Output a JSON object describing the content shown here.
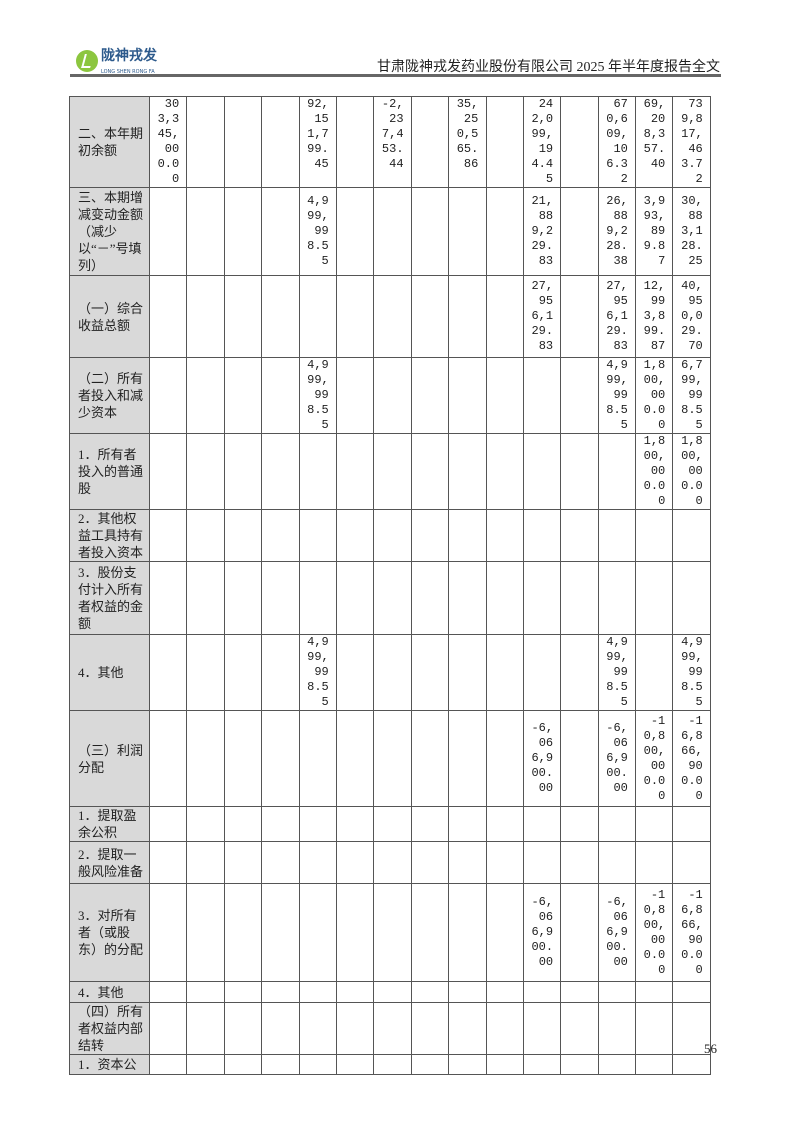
{
  "header": {
    "logo_cn": "陇神戎发",
    "logo_en": "LONG SHEN RONG FA",
    "title": "甘肃陇神戎发药业股份有限公司 2025 年半年度报告全文"
  },
  "colors": {
    "label_background": "#d9d9d9",
    "logo_green": "#8cc63f",
    "logo_blue": "#2d5a8c"
  },
  "table": {
    "rows": [
      {
        "label": "二、本年期初余额",
        "values": [
          "303,345,000.00",
          "",
          "",
          "",
          "92,151,799.45",
          "",
          "-2,237,453.44",
          "",
          "35,250,565.86",
          "",
          "242,099,194.45",
          "",
          "670,609,106.32",
          "69,208,357.40",
          "739,817,463.72"
        ]
      },
      {
        "label": "三、本期增减变动金额（减少以“－”号填列）",
        "values": [
          "",
          "",
          "",
          "",
          "4,999,998.55",
          "",
          "",
          "",
          "",
          "",
          "21,889,229.83",
          "",
          "26,889,228.38",
          "3,993,899.87",
          "30,883,128.25"
        ]
      },
      {
        "label": "（一）综合收益总额",
        "values": [
          "",
          "",
          "",
          "",
          "",
          "",
          "",
          "",
          "",
          "",
          "27,956,129.83",
          "",
          "27,956,129.83",
          "12,993,899.87",
          "40,950,029.70"
        ]
      },
      {
        "label": "（二）所有者投入和减少资本",
        "values": [
          "",
          "",
          "",
          "",
          "4,999,998.55",
          "",
          "",
          "",
          "",
          "",
          "",
          "",
          "4,999,998.55",
          "1,800,000.00",
          "6,799,998.55"
        ]
      },
      {
        "label": "1．所有者投入的普通股",
        "values": [
          "",
          "",
          "",
          "",
          "",
          "",
          "",
          "",
          "",
          "",
          "",
          "",
          "",
          "1,800,000.00",
          "1,800,000.00"
        ]
      },
      {
        "label": "2．其他权益工具持有者投入资本",
        "values": [
          "",
          "",
          "",
          "",
          "",
          "",
          "",
          "",
          "",
          "",
          "",
          "",
          "",
          "",
          ""
        ]
      },
      {
        "label": "3．股份支付计入所有者权益的金额",
        "values": [
          "",
          "",
          "",
          "",
          "",
          "",
          "",
          "",
          "",
          "",
          "",
          "",
          "",
          "",
          ""
        ]
      },
      {
        "label": "4．其他",
        "values": [
          "",
          "",
          "",
          "",
          "4,999,998.55",
          "",
          "",
          "",
          "",
          "",
          "",
          "",
          "4,999,998.55",
          "",
          "4,999,998.55"
        ]
      },
      {
        "label": "（三）利润分配",
        "values": [
          "",
          "",
          "",
          "",
          "",
          "",
          "",
          "",
          "",
          "",
          "-6,066,900.00",
          "",
          "-6,066,900.00",
          "-10,800,000.00",
          "-16,866,900.00"
        ]
      },
      {
        "label": "1．提取盈余公积",
        "values": [
          "",
          "",
          "",
          "",
          "",
          "",
          "",
          "",
          "",
          "",
          "",
          "",
          "",
          "",
          ""
        ]
      },
      {
        "label": "2．提取一般风险准备",
        "values": [
          "",
          "",
          "",
          "",
          "",
          "",
          "",
          "",
          "",
          "",
          "",
          "",
          "",
          "",
          ""
        ]
      },
      {
        "label": "3．对所有者（或股东）的分配",
        "values": [
          "",
          "",
          "",
          "",
          "",
          "",
          "",
          "",
          "",
          "",
          "-6,066,900.00",
          "",
          "-6,066,900.00",
          "-10,800,000.00",
          "-16,866,900.00"
        ]
      },
      {
        "label": "4．其他",
        "values": [
          "",
          "",
          "",
          "",
          "",
          "",
          "",
          "",
          "",
          "",
          "",
          "",
          "",
          "",
          ""
        ]
      },
      {
        "label": "（四）所有者权益内部结转",
        "values": [
          "",
          "",
          "",
          "",
          "",
          "",
          "",
          "",
          "",
          "",
          "",
          "",
          "",
          "",
          ""
        ]
      },
      {
        "label": "1．资本公",
        "values": [
          "",
          "",
          "",
          "",
          "",
          "",
          "",
          "",
          "",
          "",
          "",
          "",
          "",
          "",
          ""
        ]
      }
    ]
  },
  "footer": {
    "page_number": "56"
  }
}
